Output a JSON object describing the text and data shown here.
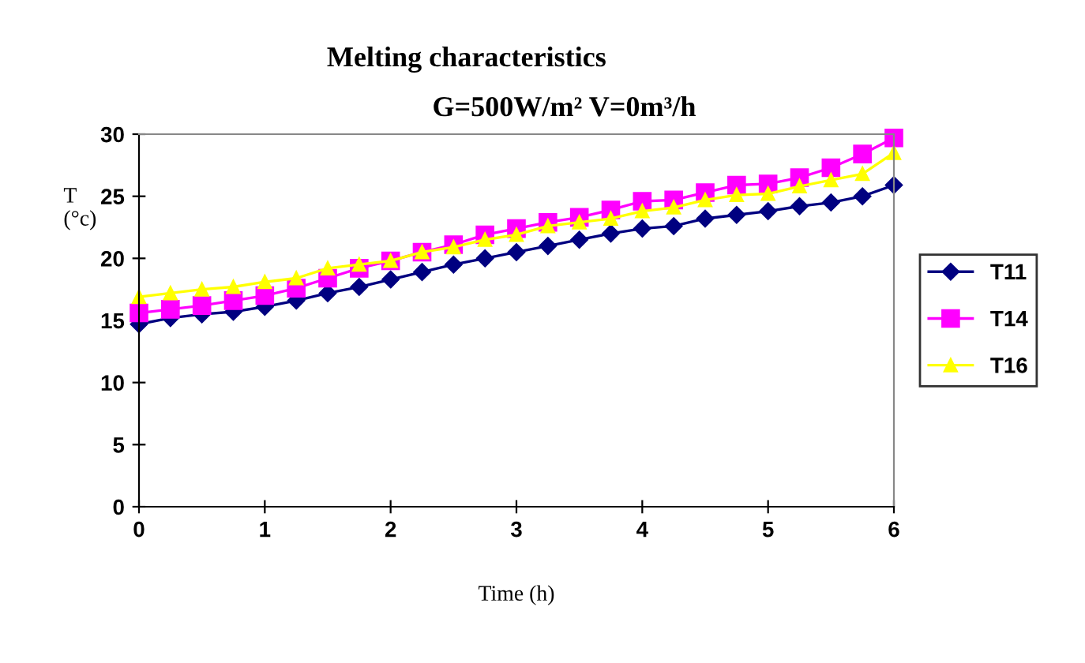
{
  "chart_data": {
    "type": "line",
    "title": "Melting characteristics",
    "subtitle": "G=500W/m² V=0m³/h",
    "xlabel": "Time (h)",
    "ylabel": "T\n(°c)",
    "x": [
      0,
      0.25,
      0.5,
      0.75,
      1,
      1.25,
      1.5,
      1.75,
      2,
      2.25,
      2.5,
      2.75,
      3,
      3.25,
      3.5,
      3.75,
      4,
      4.25,
      4.5,
      4.75,
      5,
      5.25,
      5.5,
      5.75,
      6
    ],
    "series": [
      {
        "name": "T11",
        "color": "#000080",
        "marker": "diamond",
        "values": [
          14.7,
          15.2,
          15.5,
          15.7,
          16.1,
          16.6,
          17.2,
          17.7,
          18.3,
          18.9,
          19.5,
          20.0,
          20.5,
          21.0,
          21.5,
          22.0,
          22.4,
          22.6,
          23.2,
          23.5,
          23.8,
          24.2,
          24.5,
          25.0,
          25.9
        ]
      },
      {
        "name": "T14",
        "color": "#ff00ff",
        "marker": "square",
        "values": [
          15.6,
          15.9,
          16.2,
          16.6,
          17.0,
          17.6,
          18.4,
          19.2,
          19.8,
          20.5,
          21.1,
          21.9,
          22.4,
          22.9,
          23.3,
          23.9,
          24.6,
          24.7,
          25.3,
          25.9,
          26.0,
          26.5,
          27.3,
          28.4,
          29.7
        ]
      },
      {
        "name": "T16",
        "color": "#ffff00",
        "marker": "triangle",
        "values": [
          16.9,
          17.2,
          17.5,
          17.7,
          18.1,
          18.4,
          19.2,
          19.5,
          19.8,
          20.5,
          20.9,
          21.5,
          21.9,
          22.6,
          22.9,
          23.2,
          23.8,
          24.1,
          24.7,
          25.1,
          25.2,
          25.8,
          26.3,
          26.8,
          28.5
        ]
      }
    ],
    "xlim": [
      0,
      6
    ],
    "xticks": [
      0,
      1,
      2,
      3,
      4,
      5,
      6
    ],
    "ylim": [
      0,
      30
    ],
    "yticks": [
      0,
      5,
      10,
      15,
      20,
      25,
      30
    ],
    "grid": false,
    "legend": "right"
  }
}
